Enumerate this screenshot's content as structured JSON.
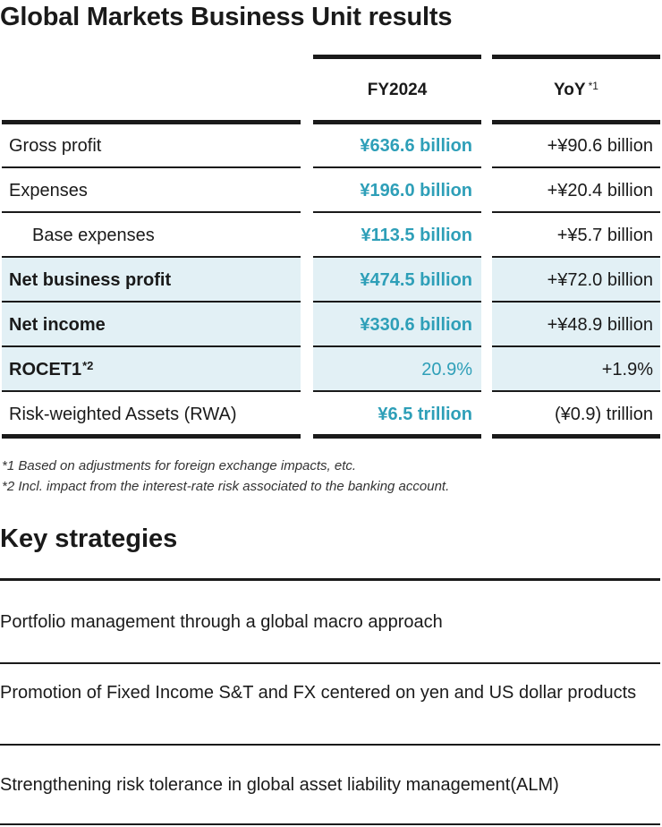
{
  "title": "Global Markets Business Unit results",
  "table": {
    "headers": {
      "fy": "FY2024",
      "yoy": "YoY",
      "yoy_note": "*1"
    },
    "rows": [
      {
        "label": "Gross profit",
        "fy": "¥636.6 billion",
        "yoy": "+¥90.6 billion"
      },
      {
        "label": "Expenses",
        "fy": "¥196.0 billion",
        "yoy": "+¥20.4 billion"
      },
      {
        "label": "Base expenses",
        "fy": "¥113.5 billion",
        "yoy": "+¥5.7 billion"
      },
      {
        "label": "Net business profit",
        "fy": "¥474.5 billion",
        "yoy": "+¥72.0 billion"
      },
      {
        "label": "Net income",
        "fy": "¥330.6 billion",
        "yoy": "+¥48.9 billion"
      },
      {
        "label": "ROCET1",
        "label_note": "*2",
        "fy": "20.9%",
        "yoy": "+1.9%"
      },
      {
        "label": "Risk-weighted Assets (RWA)",
        "fy": "¥6.5 trillion",
        "yoy": "(¥0.9) trillion"
      }
    ]
  },
  "footnotes": [
    "*1 Based on adjustments for foreign exchange impacts, etc.",
    "*2 Incl. impact from the interest-rate risk associated to the banking account."
  ],
  "strategies": {
    "heading": "Key strategies",
    "items": [
      "Portfolio management through a global macro approach",
      "Promotion of Fixed Income S&T and FX centered on yen and US dollar products",
      "Strengthening risk tolerance in global asset liability management(ALM)"
    ]
  },
  "colors": {
    "accent": "#2e9fb8",
    "shade": "#e2f0f5",
    "rule": "#1a1a1a"
  }
}
